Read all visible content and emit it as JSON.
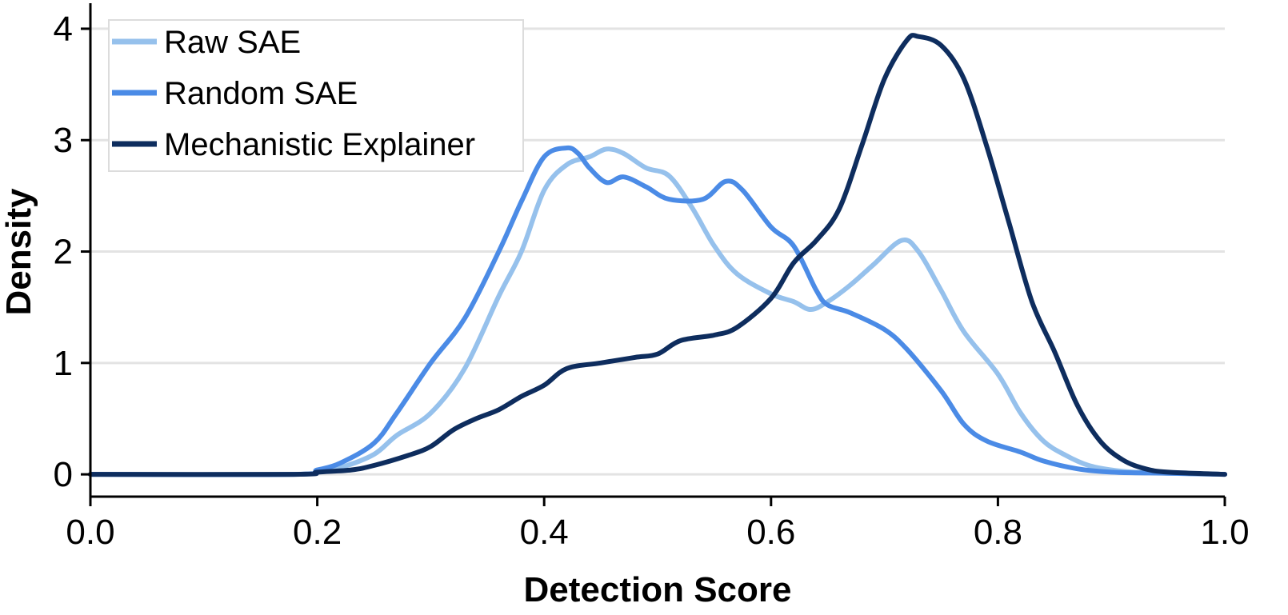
{
  "chart_data": {
    "type": "line",
    "title": "",
    "xlabel": "Detection Score",
    "ylabel": "Density",
    "xlim": [
      0.0,
      1.0
    ],
    "ylim": [
      -0.2,
      4.1
    ],
    "xticks": [
      0.0,
      0.2,
      0.4,
      0.6,
      0.8,
      1.0
    ],
    "xtick_labels": [
      "0.0",
      "0.2",
      "0.4",
      "0.6",
      "0.8",
      "1.0"
    ],
    "yticks": [
      0,
      1,
      2,
      3,
      4
    ],
    "ytick_labels": [
      "0",
      "1",
      "2",
      "3",
      "4"
    ],
    "grid": "horizontal",
    "legend_position": "top-left",
    "series": [
      {
        "name": "Raw SAE",
        "color": "#96c1ec",
        "x": [
          0.0,
          0.18,
          0.2,
          0.22,
          0.25,
          0.27,
          0.3,
          0.33,
          0.36,
          0.38,
          0.4,
          0.42,
          0.44,
          0.455,
          0.47,
          0.49,
          0.51,
          0.53,
          0.55,
          0.57,
          0.6,
          0.62,
          0.635,
          0.65,
          0.67,
          0.69,
          0.715,
          0.73,
          0.75,
          0.77,
          0.8,
          0.82,
          0.84,
          0.86,
          0.88,
          0.9,
          0.92,
          0.95,
          1.0
        ],
        "y": [
          0.0,
          0.0,
          0.03,
          0.06,
          0.18,
          0.35,
          0.55,
          0.95,
          1.6,
          2.0,
          2.55,
          2.78,
          2.85,
          2.92,
          2.88,
          2.75,
          2.68,
          2.4,
          2.05,
          1.8,
          1.62,
          1.55,
          1.48,
          1.55,
          1.7,
          1.88,
          2.1,
          2.0,
          1.65,
          1.28,
          0.9,
          0.55,
          0.3,
          0.17,
          0.08,
          0.04,
          0.02,
          0.01,
          0.0
        ]
      },
      {
        "name": "Random SAE",
        "color": "#4b8be6",
        "x": [
          0.0,
          0.18,
          0.2,
          0.22,
          0.25,
          0.27,
          0.3,
          0.33,
          0.36,
          0.38,
          0.4,
          0.42,
          0.43,
          0.44,
          0.455,
          0.47,
          0.49,
          0.51,
          0.54,
          0.56,
          0.575,
          0.6,
          0.62,
          0.64,
          0.65,
          0.67,
          0.7,
          0.72,
          0.75,
          0.77,
          0.79,
          0.82,
          0.84,
          0.87,
          0.9,
          0.95,
          1.0
        ],
        "y": [
          0.0,
          0.0,
          0.04,
          0.1,
          0.28,
          0.55,
          1.0,
          1.4,
          2.0,
          2.45,
          2.85,
          2.93,
          2.88,
          2.75,
          2.62,
          2.67,
          2.58,
          2.47,
          2.47,
          2.63,
          2.55,
          2.22,
          2.05,
          1.65,
          1.52,
          1.45,
          1.3,
          1.12,
          0.75,
          0.45,
          0.3,
          0.2,
          0.12,
          0.05,
          0.02,
          0.01,
          0.0
        ]
      },
      {
        "name": "Mechanistic Explainer",
        "color": "#0e2d5e",
        "x": [
          0.0,
          0.18,
          0.2,
          0.23,
          0.25,
          0.28,
          0.3,
          0.32,
          0.34,
          0.36,
          0.38,
          0.4,
          0.42,
          0.45,
          0.48,
          0.5,
          0.52,
          0.55,
          0.57,
          0.6,
          0.62,
          0.64,
          0.66,
          0.68,
          0.7,
          0.72,
          0.73,
          0.75,
          0.77,
          0.79,
          0.81,
          0.83,
          0.85,
          0.87,
          0.89,
          0.91,
          0.93,
          0.95,
          1.0
        ],
        "y": [
          0.0,
          0.0,
          0.02,
          0.04,
          0.08,
          0.17,
          0.25,
          0.4,
          0.5,
          0.58,
          0.7,
          0.8,
          0.95,
          1.0,
          1.05,
          1.08,
          1.2,
          1.25,
          1.32,
          1.58,
          1.9,
          2.1,
          2.38,
          2.95,
          3.55,
          3.9,
          3.93,
          3.85,
          3.55,
          2.95,
          2.25,
          1.55,
          1.1,
          0.62,
          0.3,
          0.13,
          0.05,
          0.02,
          0.0
        ]
      }
    ]
  }
}
